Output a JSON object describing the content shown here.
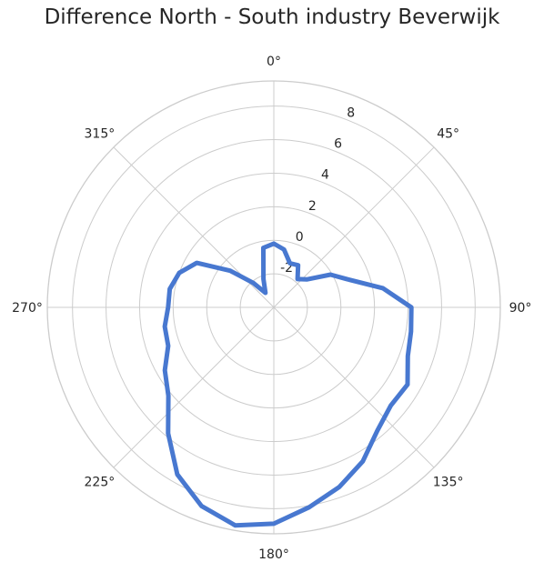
{
  "chart_data": {
    "type": "line",
    "polar": true,
    "title": "Difference North - South industry Beverwijk",
    "theta_unit": "degrees",
    "theta_direction": "clockwise",
    "theta_zero": "N",
    "theta_ticks": [
      "0°",
      "45°",
      "90°",
      "135°",
      "180°",
      "225°",
      "270°",
      "315°"
    ],
    "r_ticks": [
      "-2",
      "0",
      "2",
      "4",
      "6",
      "8"
    ],
    "r_tick_values": [
      -2,
      0,
      2,
      4,
      6,
      8
    ],
    "rlim": [
      -4,
      9.5
    ],
    "grid": true,
    "series": [
      {
        "color": "#4878d0",
        "points": [
          {
            "theta": 0,
            "r": -0.2
          },
          {
            "theta": 10,
            "r": -0.5
          },
          {
            "theta": 20,
            "r": -1.2
          },
          {
            "theta": 30,
            "r": -1.1
          },
          {
            "theta": 40,
            "r": -1.8
          },
          {
            "theta": 50,
            "r": -1.4
          },
          {
            "theta": 60,
            "r": -0.1
          },
          {
            "theta": 70,
            "r": 0.8
          },
          {
            "theta": 80,
            "r": 2.6
          },
          {
            "theta": 90,
            "r": 4.2
          },
          {
            "theta": 100,
            "r": 4.3
          },
          {
            "theta": 110,
            "r": 4.5
          },
          {
            "theta": 120,
            "r": 5.2
          },
          {
            "theta": 130,
            "r": 5.1
          },
          {
            "theta": 140,
            "r": 5.6
          },
          {
            "theta": 150,
            "r": 6.6
          },
          {
            "theta": 160,
            "r": 7.4
          },
          {
            "theta": 170,
            "r": 8.1
          },
          {
            "theta": 180,
            "r": 8.9
          },
          {
            "theta": 190,
            "r": 9.2
          },
          {
            "theta": 200,
            "r": 8.6
          },
          {
            "theta": 210,
            "r": 7.5
          },
          {
            "theta": 220,
            "r": 5.8
          },
          {
            "theta": 230,
            "r": 4.2
          },
          {
            "theta": 240,
            "r": 3.5
          },
          {
            "theta": 250,
            "r": 2.7
          },
          {
            "theta": 260,
            "r": 2.6
          },
          {
            "theta": 270,
            "r": 2.3
          },
          {
            "theta": 280,
            "r": 2.3
          },
          {
            "theta": 290,
            "r": 2.0
          },
          {
            "theta": 300,
            "r": 1.3
          },
          {
            "theta": 310,
            "r": -0.6
          },
          {
            "theta": 320,
            "r": -2.1
          },
          {
            "theta": 330,
            "r": -3.0
          },
          {
            "theta": 340,
            "r": -2.2
          },
          {
            "theta": 350,
            "r": -0.4
          },
          {
            "theta": 360,
            "r": -0.2
          }
        ]
      }
    ]
  }
}
